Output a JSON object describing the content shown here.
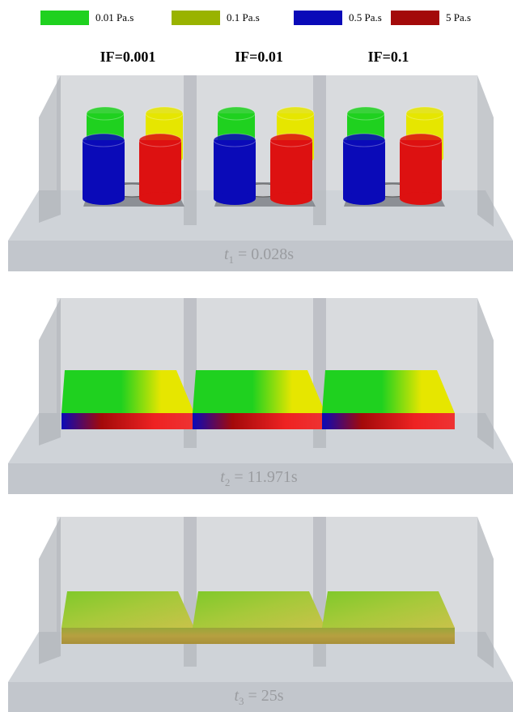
{
  "legend": [
    {
      "label": "0.01 Pa.s",
      "color": "#1fd11f"
    },
    {
      "label": "0.1 Pa.s",
      "color": "#99b300"
    },
    {
      "label": "0.5 Pa.s",
      "color": "#0a0ab8"
    },
    {
      "label": "5 Pa.s",
      "color": "#a30a0a"
    }
  ],
  "columns": [
    "IF=0.001",
    "IF=0.01",
    "IF=0.1"
  ],
  "panels": [
    {
      "time": {
        "variable": "t",
        "subscript": "1",
        "value": "= 0.028s"
      }
    },
    {
      "time": {
        "variable": "t",
        "subscript": "2",
        "value": "= 11.971s"
      }
    },
    {
      "time": {
        "variable": "t",
        "subscript": "3",
        "value": "= 25s"
      }
    }
  ]
}
